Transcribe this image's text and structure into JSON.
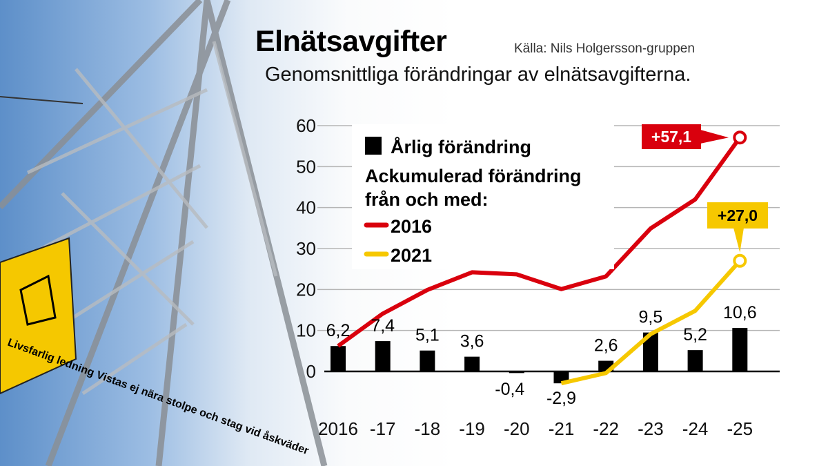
{
  "header": {
    "title": "Elnätsavgifter",
    "source": "Källa: Nils Holgersson-gruppen",
    "subtitle": "Genomsnittliga förändringar av elnätsavgifterna."
  },
  "photo": {
    "sign_text": "Livsfarlig ledning Vistas ej nära stolpe och stag vid åskväder"
  },
  "chart_data": {
    "type": "bar+line",
    "categories": [
      "2016",
      "-17",
      "-18",
      "-19",
      "-20",
      "-21",
      "-22",
      "-23",
      "-24",
      "-25"
    ],
    "ylim": [
      0,
      60
    ],
    "yticks": [
      0,
      10,
      20,
      30,
      40,
      50,
      60
    ],
    "grid": true,
    "legend_placement": "top-left",
    "bars": {
      "name": "Årlig förändring",
      "color": "#000000",
      "values": [
        6.2,
        7.4,
        5.1,
        3.6,
        -0.4,
        -2.9,
        2.6,
        9.5,
        5.2,
        10.6
      ],
      "labels": [
        "6,2",
        "7,4",
        "5,1",
        "3,6",
        "-0,4",
        "-2,9",
        "2,6",
        "9,5",
        "5,2",
        "10,6"
      ]
    },
    "legend_heading": [
      "Ackumulerad förändring",
      "från och med:"
    ],
    "series": [
      {
        "name": "2016",
        "color": "#d9000d",
        "values": [
          6.2,
          14.1,
          19.9,
          24.2,
          23.7,
          20.1,
          23.2,
          34.9,
          42.0,
          57.1
        ],
        "end_label": "+57,1"
      },
      {
        "name": "2021",
        "color": "#f6c800",
        "values": [
          null,
          null,
          null,
          null,
          null,
          -2.9,
          -0.4,
          9.1,
          14.8,
          27.0
        ],
        "end_label": "+27,0"
      }
    ]
  }
}
